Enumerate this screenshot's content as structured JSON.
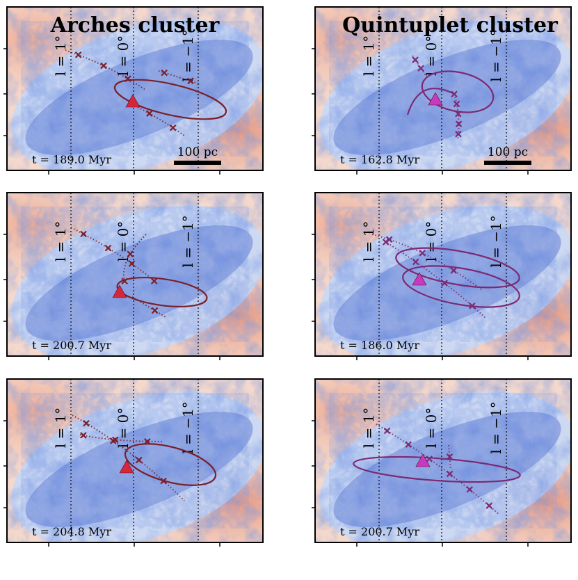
{
  "figure": {
    "columns": [
      {
        "title": "Arches cluster",
        "accent": "#7a1f2b",
        "marker": "#d6263b"
      },
      {
        "title": "Quintuplet cluster",
        "accent": "#7b2a73",
        "marker": "#c639c0"
      }
    ],
    "scale_bar_label": "100 pc",
    "longitude_labels": [
      "l = 1°",
      "l = 0°",
      "l = −1°"
    ],
    "colors": {
      "dense_gas": "#2d4fc4",
      "diffuse_low": "#c9d8f5",
      "diffuse_high": "#e98a6b",
      "background": "#f4d8cc"
    }
  },
  "chart_data": [
    {
      "type": "map",
      "panel": "Arches cluster, row 1",
      "time_label": "t = 189.0 Myr",
      "time_myr": 189.0,
      "scale_bar": "100 pc"
    },
    {
      "type": "map",
      "panel": "Quintuplet cluster, row 1",
      "time_label": "t = 162.8 Myr",
      "time_myr": 162.8,
      "scale_bar": "100 pc"
    },
    {
      "type": "map",
      "panel": "Arches cluster, row 2",
      "time_label": "t = 200.7 Myr",
      "time_myr": 200.7
    },
    {
      "type": "map",
      "panel": "Quintuplet cluster, row 2",
      "time_label": "t = 186.0 Myr",
      "time_myr": 186.0
    },
    {
      "type": "map",
      "panel": "Arches cluster, row 3",
      "time_label": "t = 204.8 Myr",
      "time_myr": 204.8
    },
    {
      "type": "map",
      "panel": "Quintuplet cluster, row 3",
      "time_label": "t = 200.7 Myr",
      "time_myr": 200.7
    }
  ]
}
